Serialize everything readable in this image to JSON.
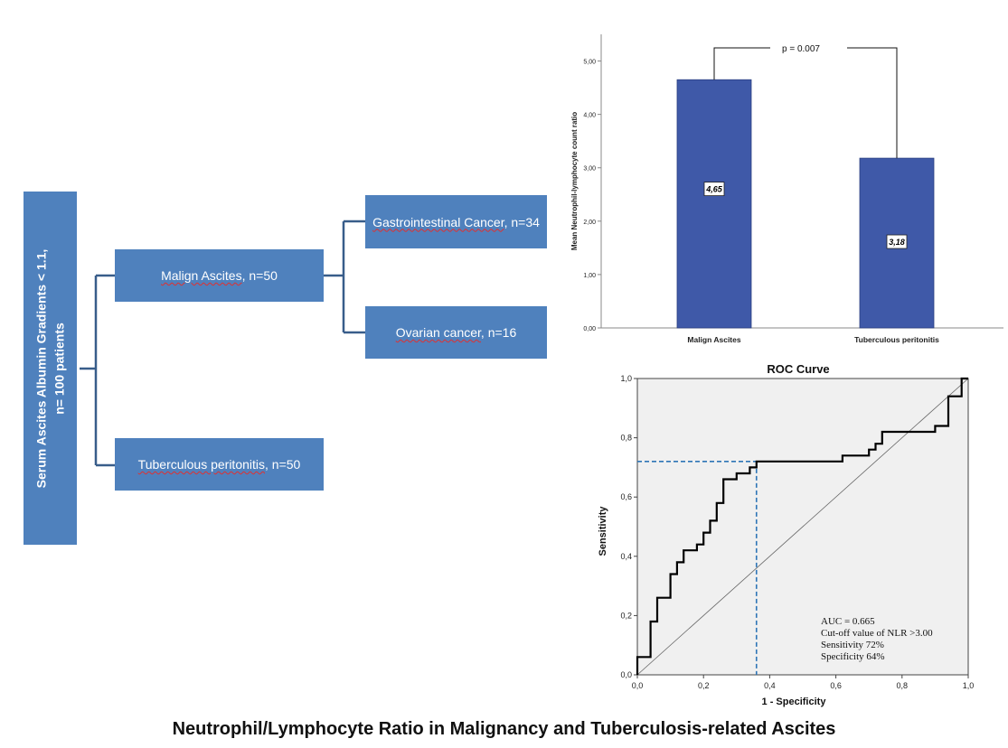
{
  "tree": {
    "root": {
      "line1": "Serum Ascites Albumin Gradients < 1.1,",
      "line2": "n= 100 patients"
    },
    "malign": {
      "label": "Malign Ascites",
      "n": ", n=50"
    },
    "tb": {
      "label": "Tuberculous peritonitis",
      "n": ", n=50"
    },
    "gi": {
      "label": "Gastrointestinal Cancer",
      "n": ", n=34"
    },
    "ovarian": {
      "label": "Ovarian cancer",
      "n": ", n=16"
    }
  },
  "colors": {
    "box": "#4f81bd",
    "connector": "#385d8a",
    "bar": "#3f59a8",
    "roc_fill": "#f0f0f0",
    "cutoff": "#2e75b6"
  },
  "chart_data": [
    {
      "type": "bar",
      "categories": [
        "Malign Ascites",
        "Tuberculous peritonitis"
      ],
      "values": [
        4.65,
        3.18
      ],
      "value_labels": [
        "4,65",
        "3,18"
      ],
      "ylabel": "Mean Neutrophil-lymphocyte count ratio",
      "yticks": [
        "0,00",
        "1,00",
        "2,00",
        "3,00",
        "4,00",
        "5,00"
      ],
      "ylim": [
        0,
        5.5
      ],
      "annotation": "p = 0.007"
    },
    {
      "type": "line",
      "title": "ROC Curve",
      "xlabel": "1 - Specificity",
      "ylabel": "Sensitivity",
      "xlim": [
        0,
        1
      ],
      "ylim": [
        0,
        1
      ],
      "xticks": [
        "0,0",
        "0,2",
        "0,4",
        "0,6",
        "0,8",
        "1,0"
      ],
      "yticks": [
        "0,0",
        "0,2",
        "0,4",
        "0,6",
        "0,8",
        "1,0"
      ],
      "roc": [
        [
          0,
          0
        ],
        [
          0,
          0.06
        ],
        [
          0.04,
          0.06
        ],
        [
          0.04,
          0.18
        ],
        [
          0.06,
          0.18
        ],
        [
          0.06,
          0.26
        ],
        [
          0.1,
          0.26
        ],
        [
          0.1,
          0.34
        ],
        [
          0.12,
          0.34
        ],
        [
          0.12,
          0.38
        ],
        [
          0.14,
          0.38
        ],
        [
          0.14,
          0.42
        ],
        [
          0.18,
          0.42
        ],
        [
          0.18,
          0.44
        ],
        [
          0.2,
          0.44
        ],
        [
          0.2,
          0.48
        ],
        [
          0.22,
          0.48
        ],
        [
          0.22,
          0.52
        ],
        [
          0.24,
          0.52
        ],
        [
          0.24,
          0.58
        ],
        [
          0.26,
          0.58
        ],
        [
          0.26,
          0.66
        ],
        [
          0.3,
          0.66
        ],
        [
          0.3,
          0.68
        ],
        [
          0.34,
          0.68
        ],
        [
          0.34,
          0.7
        ],
        [
          0.36,
          0.7
        ],
        [
          0.36,
          0.72
        ],
        [
          0.62,
          0.72
        ],
        [
          0.62,
          0.74
        ],
        [
          0.7,
          0.74
        ],
        [
          0.7,
          0.76
        ],
        [
          0.72,
          0.76
        ],
        [
          0.72,
          0.78
        ],
        [
          0.74,
          0.78
        ],
        [
          0.74,
          0.82
        ],
        [
          0.9,
          0.82
        ],
        [
          0.9,
          0.84
        ],
        [
          0.94,
          0.84
        ],
        [
          0.94,
          0.94
        ],
        [
          0.98,
          0.94
        ],
        [
          0.98,
          1
        ],
        [
          1,
          1
        ]
      ],
      "reference_line": [
        [
          0,
          0
        ],
        [
          1,
          1
        ]
      ],
      "cutoff_point": [
        0.36,
        0.72
      ],
      "annotations": [
        "AUC = 0.665",
        "Cut-off value of NLR >3.00",
        "Sensitivity 72%",
        "Specificity 64%"
      ]
    }
  ],
  "footer": "Neutrophil/Lymphocyte Ratio in Malignancy and Tuberculosis-related Ascites"
}
